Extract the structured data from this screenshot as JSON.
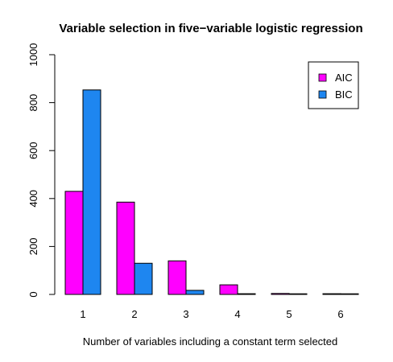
{
  "chart_data": {
    "type": "bar",
    "title": "Variable selection in five−variable logistic regression",
    "xlabel": "Number of variables including a constant term selected",
    "ylabel": "",
    "categories": [
      "1",
      "2",
      "3",
      "4",
      "5",
      "6"
    ],
    "series": [
      {
        "name": "AIC",
        "color": "#ff00ff",
        "values": [
          430,
          385,
          140,
          40,
          4,
          3
        ]
      },
      {
        "name": "BIC",
        "color": "#1e86f0",
        "values": [
          853,
          130,
          17,
          3,
          1,
          1
        ]
      }
    ],
    "ylim": [
      0,
      1000
    ],
    "yticks": [
      "0",
      "200",
      "400",
      "600",
      "800",
      "1000"
    ],
    "legend_position": "top-right",
    "grid": false
  }
}
